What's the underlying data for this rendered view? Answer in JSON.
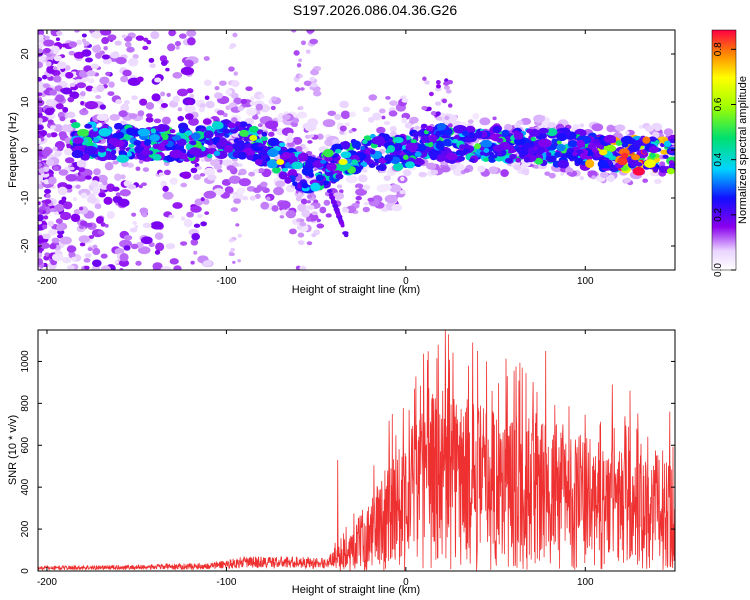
{
  "title": "S197.2026.086.04.36.G26",
  "chart_data": [
    {
      "type": "heatmap",
      "name": "spectrogram",
      "xlabel": "Height of straight line (km)",
      "ylabel": "Frequency (Hz)",
      "xlim": [
        -205,
        150
      ],
      "ylim": [
        -25,
        25
      ],
      "xticks": [
        -200,
        -100,
        0,
        100
      ],
      "yticks": [
        -20,
        -10,
        0,
        10,
        20
      ],
      "colorbar": {
        "label": "Normalized spectral amplitude",
        "range": [
          0,
          0.87
        ],
        "ticks": [
          0.0,
          0.2,
          0.4,
          0.6,
          0.8
        ]
      },
      "ridge_center_hz": [
        {
          "x": -180,
          "y": 2
        },
        {
          "x": -160,
          "y": 1.5
        },
        {
          "x": -140,
          "y": 1
        },
        {
          "x": -120,
          "y": 1.5
        },
        {
          "x": -100,
          "y": 2.5
        },
        {
          "x": -85,
          "y": 1.5
        },
        {
          "x": -70,
          "y": -2
        },
        {
          "x": -55,
          "y": -5
        },
        {
          "x": -45,
          "y": -4
        },
        {
          "x": -35,
          "y": -2
        },
        {
          "x": -20,
          "y": -0.5
        },
        {
          "x": 0,
          "y": 0
        },
        {
          "x": 20,
          "y": 1.5
        },
        {
          "x": 40,
          "y": 1
        },
        {
          "x": 60,
          "y": 1
        },
        {
          "x": 80,
          "y": 0.5
        },
        {
          "x": 100,
          "y": 0
        },
        {
          "x": 120,
          "y": -1
        },
        {
          "x": 140,
          "y": -1
        }
      ]
    },
    {
      "type": "line",
      "name": "snr",
      "xlabel": "Height of straight line (km)",
      "ylabel": "SNR (10 * v/v)",
      "xlim": [
        -205,
        150
      ],
      "ylim": [
        0,
        1150
      ],
      "xticks": [
        -200,
        -100,
        0,
        100
      ],
      "yticks": [
        0,
        200,
        400,
        600,
        800,
        1000
      ],
      "color": "#ee3030",
      "envelope": [
        {
          "x": -205,
          "y": 25
        },
        {
          "x": -150,
          "y": 30
        },
        {
          "x": -110,
          "y": 40
        },
        {
          "x": -90,
          "y": 70
        },
        {
          "x": -60,
          "y": 70
        },
        {
          "x": -45,
          "y": 60
        },
        {
          "x": -38,
          "y": 110
        },
        {
          "x": -30,
          "y": 200
        },
        {
          "x": -20,
          "y": 320
        },
        {
          "x": -10,
          "y": 520
        },
        {
          "x": 0,
          "y": 640
        },
        {
          "x": 10,
          "y": 760
        },
        {
          "x": 20,
          "y": 880
        },
        {
          "x": 30,
          "y": 800
        },
        {
          "x": 50,
          "y": 750
        },
        {
          "x": 70,
          "y": 700
        },
        {
          "x": 90,
          "y": 640
        },
        {
          "x": 110,
          "y": 580
        },
        {
          "x": 130,
          "y": 540
        },
        {
          "x": 150,
          "y": 560
        }
      ],
      "peaks": [
        {
          "x": -38,
          "y": 530
        },
        {
          "x": 18,
          "y": 1080
        },
        {
          "x": 22,
          "y": 1150
        },
        {
          "x": 40,
          "y": 1050
        },
        {
          "x": 45,
          "y": 1000
        },
        {
          "x": 78,
          "y": 1050
        },
        {
          "x": 115,
          "y": 890
        },
        {
          "x": 125,
          "y": 860
        }
      ]
    }
  ]
}
